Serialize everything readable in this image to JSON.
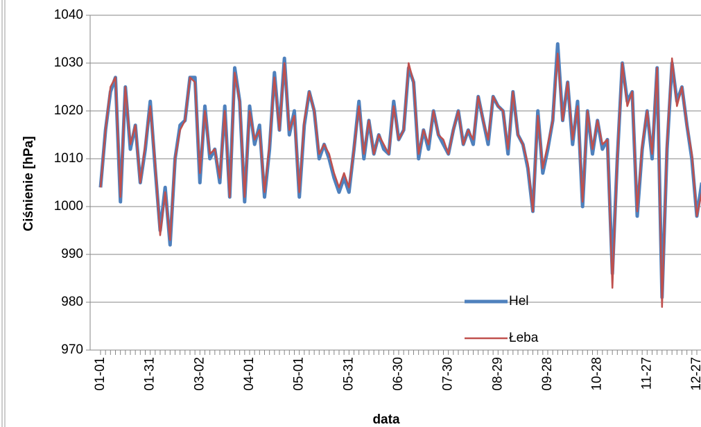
{
  "chart_data": {
    "type": "line",
    "y_label": "Ciśnienie [hPa]",
    "x_label": "data",
    "categories": [
      "01-01",
      null,
      null,
      null,
      null,
      null,
      null,
      null,
      null,
      null,
      "01-31",
      null,
      null,
      null,
      null,
      null,
      null,
      null,
      null,
      null,
      "03-02",
      null,
      null,
      null,
      null,
      null,
      null,
      null,
      null,
      null,
      "04-01",
      null,
      null,
      null,
      null,
      null,
      null,
      null,
      null,
      null,
      "05-01",
      null,
      null,
      null,
      null,
      null,
      null,
      null,
      null,
      null,
      "05-31",
      null,
      null,
      null,
      null,
      null,
      null,
      null,
      null,
      null,
      "06-30",
      null,
      null,
      null,
      null,
      null,
      null,
      null,
      null,
      null,
      "07-30",
      null,
      null,
      null,
      null,
      null,
      null,
      null,
      null,
      null,
      "08-29",
      null,
      null,
      null,
      null,
      null,
      null,
      null,
      null,
      null,
      "09-28",
      null,
      null,
      null,
      null,
      null,
      null,
      null,
      null,
      null,
      "10-28",
      null,
      null,
      null,
      null,
      null,
      null,
      null,
      null,
      null,
      "11-27",
      null,
      null,
      null,
      null,
      null,
      null,
      null,
      null,
      null,
      "12-27",
      null
    ],
    "series": [
      {
        "name": "Hel",
        "color": "#4f81bd",
        "values": [
          1004,
          1016,
          1024,
          1027,
          1001,
          1025,
          1012,
          1017,
          1005,
          1012,
          1022,
          1008,
          995,
          1004,
          992,
          1010,
          1017,
          1018,
          1027,
          1027,
          1005,
          1021,
          1010,
          1012,
          1005,
          1021,
          1002,
          1029,
          1022,
          1001,
          1021,
          1013,
          1017,
          1002,
          1012,
          1028,
          1016,
          1031,
          1015,
          1020,
          1002,
          1017,
          1024,
          1020,
          1010,
          1013,
          1010,
          1006,
          1003,
          1006,
          1003,
          1012,
          1022,
          1010,
          1018,
          1011,
          1015,
          1012,
          1011,
          1022,
          1014,
          1016,
          1029,
          1026,
          1010,
          1016,
          1012,
          1020,
          1015,
          1013,
          1011,
          1016,
          1020,
          1013,
          1016,
          1013,
          1023,
          1018,
          1013,
          1023,
          1021,
          1020,
          1011,
          1024,
          1015,
          1013,
          1008,
          999,
          1020,
          1007,
          1012,
          1018,
          1034,
          1018,
          1026,
          1013,
          1022,
          1000,
          1020,
          1011,
          1018,
          1012,
          1014,
          986,
          1010,
          1030,
          1022,
          1024,
          998,
          1012,
          1020,
          1010,
          1029,
          981,
          1012,
          1030,
          1022,
          1025,
          1017,
          1010,
          998,
          1005
        ]
      },
      {
        "name": "Łeba",
        "color": "#c0504d",
        "values": [
          1004,
          1016,
          1025,
          1027,
          1002,
          1025,
          1013,
          1017,
          1005,
          1013,
          1021,
          1009,
          994,
          1003,
          993,
          1010,
          1016,
          1018,
          1027,
          1026,
          1007,
          1020,
          1011,
          1012,
          1006,
          1020,
          1002,
          1028,
          1022,
          1002,
          1020,
          1014,
          1016,
          1003,
          1013,
          1027,
          1016,
          1030,
          1016,
          1019,
          1003,
          1018,
          1024,
          1020,
          1011,
          1013,
          1011,
          1007,
          1004,
          1007,
          1004,
          1012,
          1021,
          1011,
          1018,
          1011,
          1015,
          1013,
          1011,
          1021,
          1014,
          1016,
          1030,
          1026,
          1011,
          1016,
          1013,
          1020,
          1015,
          1014,
          1011,
          1016,
          1020,
          1013,
          1016,
          1014,
          1023,
          1018,
          1014,
          1023,
          1021,
          1020,
          1012,
          1024,
          1015,
          1013,
          1009,
          999,
          1019,
          1008,
          1013,
          1018,
          1032,
          1018,
          1026,
          1014,
          1021,
          1001,
          1020,
          1012,
          1018,
          1013,
          1014,
          983,
          1010,
          1030,
          1021,
          1024,
          999,
          1013,
          1020,
          1011,
          1029,
          979,
          1013,
          1031,
          1021,
          1025,
          1017,
          1011,
          998,
          1003
        ]
      }
    ],
    "ylim": [
      970,
      1040
    ],
    "yticks": [
      970,
      980,
      990,
      1000,
      1010,
      1020,
      1030,
      1040
    ],
    "grid": true,
    "legend": "lower right"
  }
}
